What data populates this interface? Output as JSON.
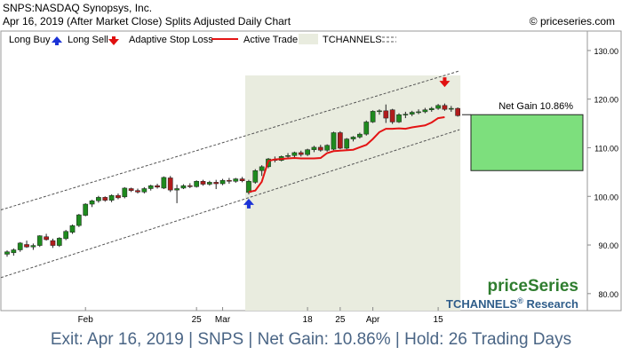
{
  "header": {
    "title": "SNPS:NASDAQ Synopsys, Inc.",
    "subtitle": "Apr 16, 2019 (After Market Close)  Splits Adjusted Daily Chart",
    "copyright": "© priceseries.com"
  },
  "legend": {
    "long_buy": "Long Buy",
    "long_sell": "Long Sell",
    "adaptive_stop": "Adaptive Stop Loss",
    "active_trade": "Active Trade",
    "tchannels": "TCHANNELS"
  },
  "branding": {
    "logo": "priceSeries",
    "research": "TCHANNELS",
    "research_reg": "®",
    "research_suffix": " Research"
  },
  "net_gain_label": "Net Gain 10.86%",
  "footer": {
    "exit": "Exit: Apr 16, 2019",
    "symbol": "SNPS",
    "net_gain": "Net Gain: 10.86%",
    "hold": "Hold: 26 Trading Days",
    "separator": " | "
  },
  "colors": {
    "up_candle": "#1e8a1e",
    "down_candle": "#b01c1c",
    "stop_line": "#e41414",
    "active_trade_bg": "#e9ecdf",
    "gain_box": "#7ddf7d",
    "buy_arrow": "#1c33d6",
    "sell_arrow": "#e01010",
    "branding_green": "#2f7d2f",
    "research_blue": "#2f5d8a",
    "footer_text": "#4a6585"
  },
  "chart_data": {
    "type": "candlestick",
    "y_ticks": [
      "80.00",
      "90.00",
      "100.00",
      "110.00",
      "120.00",
      "130.00"
    ],
    "y_tick_values": [
      80,
      90,
      100,
      110,
      120,
      130
    ],
    "ylim": [
      76.5,
      134
    ],
    "x_ticks": [
      {
        "label": "Feb",
        "index": 12
      },
      {
        "label": "25",
        "index": 29
      },
      {
        "label": "Mar",
        "index": 33
      },
      {
        "label": "18",
        "index": 46
      },
      {
        "label": "25",
        "index": 51
      },
      {
        "label": "Apr",
        "index": 56
      },
      {
        "label": "15",
        "index": 66
      }
    ],
    "bars": [
      {
        "o": 88.1,
        "h": 88.9,
        "l": 87.6,
        "c": 88.6
      },
      {
        "o": 88.4,
        "h": 89.3,
        "l": 87.8,
        "c": 89.0
      },
      {
        "o": 89.0,
        "h": 90.6,
        "l": 88.6,
        "c": 90.4
      },
      {
        "o": 90.1,
        "h": 90.9,
        "l": 89.4,
        "c": 89.6
      },
      {
        "o": 89.6,
        "h": 90.3,
        "l": 89.0,
        "c": 89.9
      },
      {
        "o": 89.9,
        "h": 92.0,
        "l": 89.6,
        "c": 91.9
      },
      {
        "o": 91.7,
        "h": 92.3,
        "l": 90.9,
        "c": 91.1
      },
      {
        "o": 90.9,
        "h": 91.3,
        "l": 89.4,
        "c": 89.9
      },
      {
        "o": 89.9,
        "h": 91.6,
        "l": 89.6,
        "c": 91.4
      },
      {
        "o": 91.3,
        "h": 93.1,
        "l": 91.0,
        "c": 92.8
      },
      {
        "o": 92.6,
        "h": 94.2,
        "l": 92.3,
        "c": 94.0
      },
      {
        "o": 94.0,
        "h": 96.4,
        "l": 93.7,
        "c": 96.2
      },
      {
        "o": 96.1,
        "h": 98.6,
        "l": 95.9,
        "c": 98.4
      },
      {
        "o": 98.4,
        "h": 99.3,
        "l": 97.8,
        "c": 99.1
      },
      {
        "o": 99.1,
        "h": 100.1,
        "l": 98.7,
        "c": 99.8
      },
      {
        "o": 99.8,
        "h": 100.0,
        "l": 98.9,
        "c": 99.2
      },
      {
        "o": 99.2,
        "h": 100.4,
        "l": 98.8,
        "c": 100.2
      },
      {
        "o": 100.2,
        "h": 100.6,
        "l": 99.4,
        "c": 99.7
      },
      {
        "o": 99.9,
        "h": 101.9,
        "l": 99.6,
        "c": 101.7
      },
      {
        "o": 101.6,
        "h": 101.8,
        "l": 100.9,
        "c": 101.2
      },
      {
        "o": 101.2,
        "h": 101.6,
        "l": 100.6,
        "c": 100.9
      },
      {
        "o": 100.9,
        "h": 101.9,
        "l": 100.6,
        "c": 101.6
      },
      {
        "o": 101.6,
        "h": 102.4,
        "l": 101.2,
        "c": 102.2
      },
      {
        "o": 102.2,
        "h": 102.6,
        "l": 101.6,
        "c": 101.9
      },
      {
        "o": 101.7,
        "h": 104.1,
        "l": 101.5,
        "c": 103.9
      },
      {
        "o": 103.8,
        "h": 104.2,
        "l": 100.9,
        "c": 101.3
      },
      {
        "o": 101.3,
        "h": 102.4,
        "l": 98.6,
        "c": 101.6
      },
      {
        "o": 101.7,
        "h": 102.5,
        "l": 101.5,
        "c": 102.2
      },
      {
        "o": 102.2,
        "h": 102.7,
        "l": 101.7,
        "c": 102.0
      },
      {
        "o": 102.0,
        "h": 103.3,
        "l": 101.8,
        "c": 103.1
      },
      {
        "o": 103.1,
        "h": 103.4,
        "l": 102.2,
        "c": 102.5
      },
      {
        "o": 102.5,
        "h": 103.2,
        "l": 102.2,
        "c": 102.9
      },
      {
        "o": 102.9,
        "h": 103.4,
        "l": 101.5,
        "c": 102.6
      },
      {
        "o": 102.6,
        "h": 103.6,
        "l": 102.3,
        "c": 103.3
      },
      {
        "o": 103.3,
        "h": 103.8,
        "l": 102.6,
        "c": 103.1
      },
      {
        "o": 103.1,
        "h": 103.8,
        "l": 102.8,
        "c": 103.6
      },
      {
        "o": 103.6,
        "h": 104.0,
        "l": 102.9,
        "c": 103.2
      },
      {
        "o": 100.8,
        "h": 103.4,
        "l": 100.4,
        "c": 103.1
      },
      {
        "o": 102.9,
        "h": 105.6,
        "l": 102.6,
        "c": 105.3
      },
      {
        "o": 105.3,
        "h": 106.4,
        "l": 104.2,
        "c": 106.1
      },
      {
        "o": 106.1,
        "h": 107.9,
        "l": 105.8,
        "c": 107.7
      },
      {
        "o": 107.6,
        "h": 108.2,
        "l": 107.0,
        "c": 107.4
      },
      {
        "o": 107.4,
        "h": 108.4,
        "l": 107.2,
        "c": 108.2
      },
      {
        "o": 108.2,
        "h": 108.9,
        "l": 107.7,
        "c": 108.4
      },
      {
        "o": 108.4,
        "h": 109.2,
        "l": 107.9,
        "c": 109.0
      },
      {
        "o": 109.0,
        "h": 109.4,
        "l": 108.2,
        "c": 108.6
      },
      {
        "o": 108.6,
        "h": 109.8,
        "l": 108.3,
        "c": 109.6
      },
      {
        "o": 109.6,
        "h": 110.4,
        "l": 109.1,
        "c": 110.1
      },
      {
        "o": 110.1,
        "h": 110.6,
        "l": 109.2,
        "c": 109.5
      },
      {
        "o": 109.5,
        "h": 110.7,
        "l": 109.2,
        "c": 110.5
      },
      {
        "o": 109.7,
        "h": 113.3,
        "l": 109.5,
        "c": 113.1
      },
      {
        "o": 113.1,
        "h": 113.4,
        "l": 109.7,
        "c": 109.9
      },
      {
        "o": 109.9,
        "h": 112.0,
        "l": 109.6,
        "c": 111.8
      },
      {
        "o": 111.8,
        "h": 112.4,
        "l": 111.3,
        "c": 112.2
      },
      {
        "o": 112.2,
        "h": 113.1,
        "l": 111.9,
        "c": 112.8
      },
      {
        "o": 112.8,
        "h": 115.6,
        "l": 112.5,
        "c": 115.3
      },
      {
        "o": 115.3,
        "h": 117.7,
        "l": 115.1,
        "c": 117.5
      },
      {
        "o": 117.5,
        "h": 117.9,
        "l": 116.8,
        "c": 117.6
      },
      {
        "o": 117.6,
        "h": 118.9,
        "l": 115.1,
        "c": 116.1
      },
      {
        "o": 117.8,
        "h": 118.0,
        "l": 114.9,
        "c": 115.3
      },
      {
        "o": 115.3,
        "h": 117.1,
        "l": 115.1,
        "c": 116.8
      },
      {
        "o": 116.8,
        "h": 117.4,
        "l": 116.1,
        "c": 116.9
      },
      {
        "o": 116.9,
        "h": 117.6,
        "l": 116.5,
        "c": 117.3
      },
      {
        "o": 117.3,
        "h": 117.9,
        "l": 116.9,
        "c": 117.4
      },
      {
        "o": 117.4,
        "h": 118.2,
        "l": 117.1,
        "c": 117.8
      },
      {
        "o": 117.8,
        "h": 118.4,
        "l": 117.4,
        "c": 118.1
      },
      {
        "o": 118.1,
        "h": 119.0,
        "l": 117.8,
        "c": 118.7
      },
      {
        "o": 118.7,
        "h": 119.1,
        "l": 117.6,
        "c": 117.9
      },
      {
        "o": 118.0,
        "h": 118.6,
        "l": 117.4,
        "c": 118.1
      },
      {
        "o": 118.1,
        "h": 118.3,
        "l": 116.4,
        "c": 116.6
      }
    ],
    "stop_loss": [
      {
        "i": 37,
        "v": 100.9
      },
      {
        "i": 38,
        "v": 101.2
      },
      {
        "i": 39,
        "v": 103.0
      },
      {
        "i": 40,
        "v": 107.3
      },
      {
        "i": 41,
        "v": 107.6
      },
      {
        "i": 42,
        "v": 107.7
      },
      {
        "i": 43,
        "v": 107.8
      },
      {
        "i": 44,
        "v": 107.9
      },
      {
        "i": 45,
        "v": 107.8
      },
      {
        "i": 46,
        "v": 107.8
      },
      {
        "i": 47,
        "v": 107.8
      },
      {
        "i": 48,
        "v": 107.9
      },
      {
        "i": 49,
        "v": 108.9
      },
      {
        "i": 50,
        "v": 109.3
      },
      {
        "i": 51,
        "v": 109.4
      },
      {
        "i": 52,
        "v": 109.5
      },
      {
        "i": 53,
        "v": 109.6
      },
      {
        "i": 54,
        "v": 110.1
      },
      {
        "i": 55,
        "v": 110.6
      },
      {
        "i": 56,
        "v": 111.8
      },
      {
        "i": 57,
        "v": 113.2
      },
      {
        "i": 58,
        "v": 113.9
      },
      {
        "i": 59,
        "v": 113.9
      },
      {
        "i": 60,
        "v": 114.0
      },
      {
        "i": 61,
        "v": 113.9
      },
      {
        "i": 62,
        "v": 114.2
      },
      {
        "i": 63,
        "v": 114.4
      },
      {
        "i": 64,
        "v": 114.6
      },
      {
        "i": 65,
        "v": 115.2
      },
      {
        "i": 66,
        "v": 116.1
      },
      {
        "i": 67,
        "v": 116.3
      }
    ],
    "channel": {
      "upper": [
        {
          "i": 0,
          "v": 97.6
        },
        {
          "i": 69,
          "v": 125.7
        }
      ],
      "lower": [
        {
          "i": 0,
          "v": 83.7
        },
        {
          "i": 69,
          "v": 113.6
        }
      ]
    },
    "active_trade": {
      "start_index": 37,
      "end_index": 69
    },
    "buy_signal": {
      "index": 37,
      "value": 98.8
    },
    "sell_signal": {
      "index": 67,
      "value": 123.4
    },
    "gain_box": {
      "from": 105.3,
      "to": 116.8
    }
  }
}
